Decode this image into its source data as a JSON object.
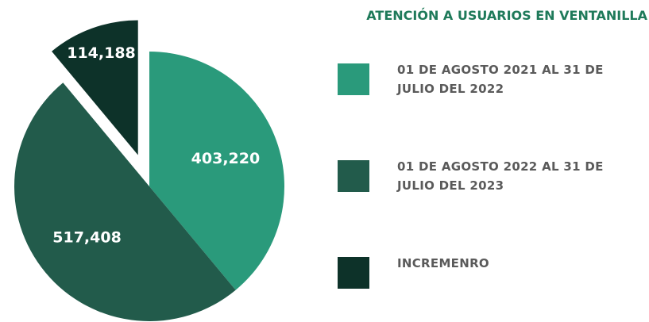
{
  "chart_data": {
    "type": "pie",
    "title": "ATENCIÓN A USUARIOS EN VENTANILLA",
    "categories": [
      "01 DE AGOSTO 2021 AL 31 DE JULIO DEL 2022",
      "01 DE AGOSTO 2022 AL 31 DE JULIO DEL 2023",
      "INCREMENRO"
    ],
    "values": [
      403220,
      517408,
      114188
    ],
    "value_labels": [
      "403,220",
      "517,408",
      "114,188"
    ],
    "colors": [
      "#2a9a7b",
      "#225b4b",
      "#0d3229"
    ],
    "exploded": [
      false,
      false,
      true
    ]
  }
}
